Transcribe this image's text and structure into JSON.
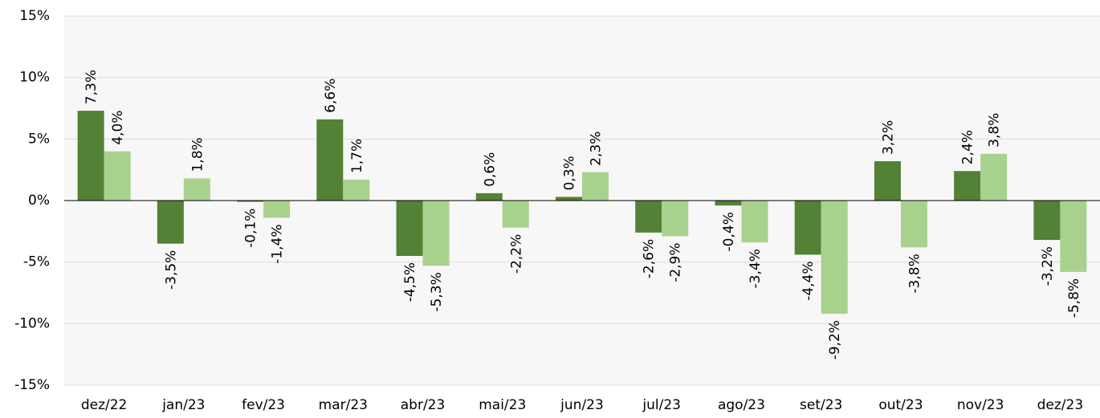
{
  "chart_data": {
    "type": "bar",
    "categories": [
      "dez/22",
      "jan/23",
      "fev/23",
      "mar/23",
      "abr/23",
      "mai/23",
      "jun/23",
      "jul/23",
      "ago/23",
      "set/23",
      "out/23",
      "nov/23",
      "dez/23"
    ],
    "series": [
      {
        "color": "#538135",
        "values": [
          7.3,
          -3.5,
          -0.1,
          6.6,
          -4.5,
          0.6,
          0.3,
          -2.6,
          -0.4,
          -4.4,
          3.2,
          2.4,
          -3.2
        ],
        "value_labels": [
          "7,3%",
          "-3,5%",
          "-0,1%",
          "6,6%",
          "-4,5%",
          "0,6%",
          "0,3%",
          "-2,6%",
          "-0,4%",
          "-4,4%",
          "3,2%",
          "2,4%",
          "-3,2%"
        ]
      },
      {
        "color": "#a9d18e",
        "values": [
          4.0,
          1.8,
          -1.4,
          1.7,
          -5.3,
          -2.2,
          2.3,
          -2.9,
          -3.4,
          -9.2,
          -3.8,
          3.8,
          -5.8
        ],
        "value_labels": [
          "4,0%",
          "1,8%",
          "-1,4%",
          "1,7%",
          "-5,3%",
          "-2,2%",
          "2,3%",
          "-2,9%",
          "-3,4%",
          "-9,2%",
          "-3,8%",
          "3,8%",
          "-5,8%"
        ]
      }
    ],
    "ylim": [
      -15,
      15
    ],
    "yticks": [
      {
        "value": -15,
        "label": "-15%"
      },
      {
        "value": -10,
        "label": "-10%"
      },
      {
        "value": -5,
        "label": "-5%"
      },
      {
        "value": 0,
        "label": "0%"
      },
      {
        "value": 5,
        "label": "5%"
      },
      {
        "value": 10,
        "label": "10%"
      },
      {
        "value": 15,
        "label": "15%"
      }
    ],
    "grid": true
  }
}
